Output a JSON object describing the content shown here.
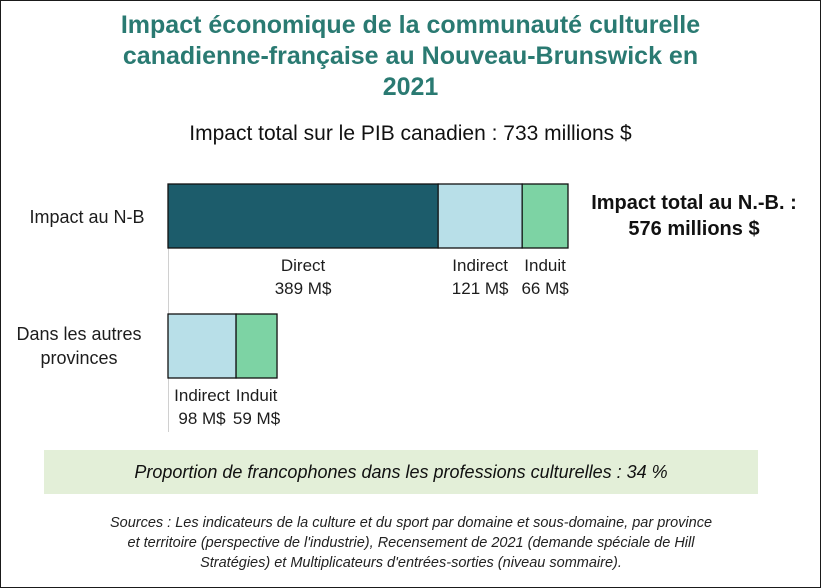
{
  "colors": {
    "title": "#2a7a72",
    "direct": "#1c5c6b",
    "indirect": "#b8dfe8",
    "induit": "#7dd3a4",
    "note_bg": "#e3efd8"
  },
  "title_lines": [
    "Impact économique de la communauté culturelle",
    "canadienne-française au Nouveau-Brunswick en",
    "2021"
  ],
  "total_canada": "Impact total sur le PIB canadien : 733 millions $",
  "total_nb": {
    "line1": "Impact total au N.-B. :",
    "line2": "576 millions $"
  },
  "chart_data": {
    "type": "bar",
    "orientation": "horizontal",
    "stacked": true,
    "units": "M$",
    "categories": [
      "Impact au N-B",
      "Dans les autres provinces"
    ],
    "series": [
      {
        "name": "Direct",
        "values": [
          389,
          0
        ],
        "labels": [
          "389 M$",
          ""
        ]
      },
      {
        "name": "Indirect",
        "values": [
          121,
          98
        ],
        "labels": [
          "121 M$",
          "98 M$"
        ]
      },
      {
        "name": "Induit",
        "values": [
          66,
          59
        ],
        "labels": [
          "66 M$",
          "59 M$"
        ]
      }
    ]
  },
  "row_labels": {
    "nb": "Impact au N-B",
    "others_line1": "Dans les autres",
    "others_line2": "provinces"
  },
  "note": "Proportion de francophones dans les professions culturelles : 34 %",
  "sources": {
    "line1": "Sources : Les indicateurs de la culture et du sport par domaine et sous-domaine, par province",
    "line2": "et territoire (perspective de l'industrie), Recensement de 2021 (demande spéciale de Hill",
    "line3": "Stratégies) et Multiplicateurs d'entrées-sorties (niveau sommaire)."
  }
}
